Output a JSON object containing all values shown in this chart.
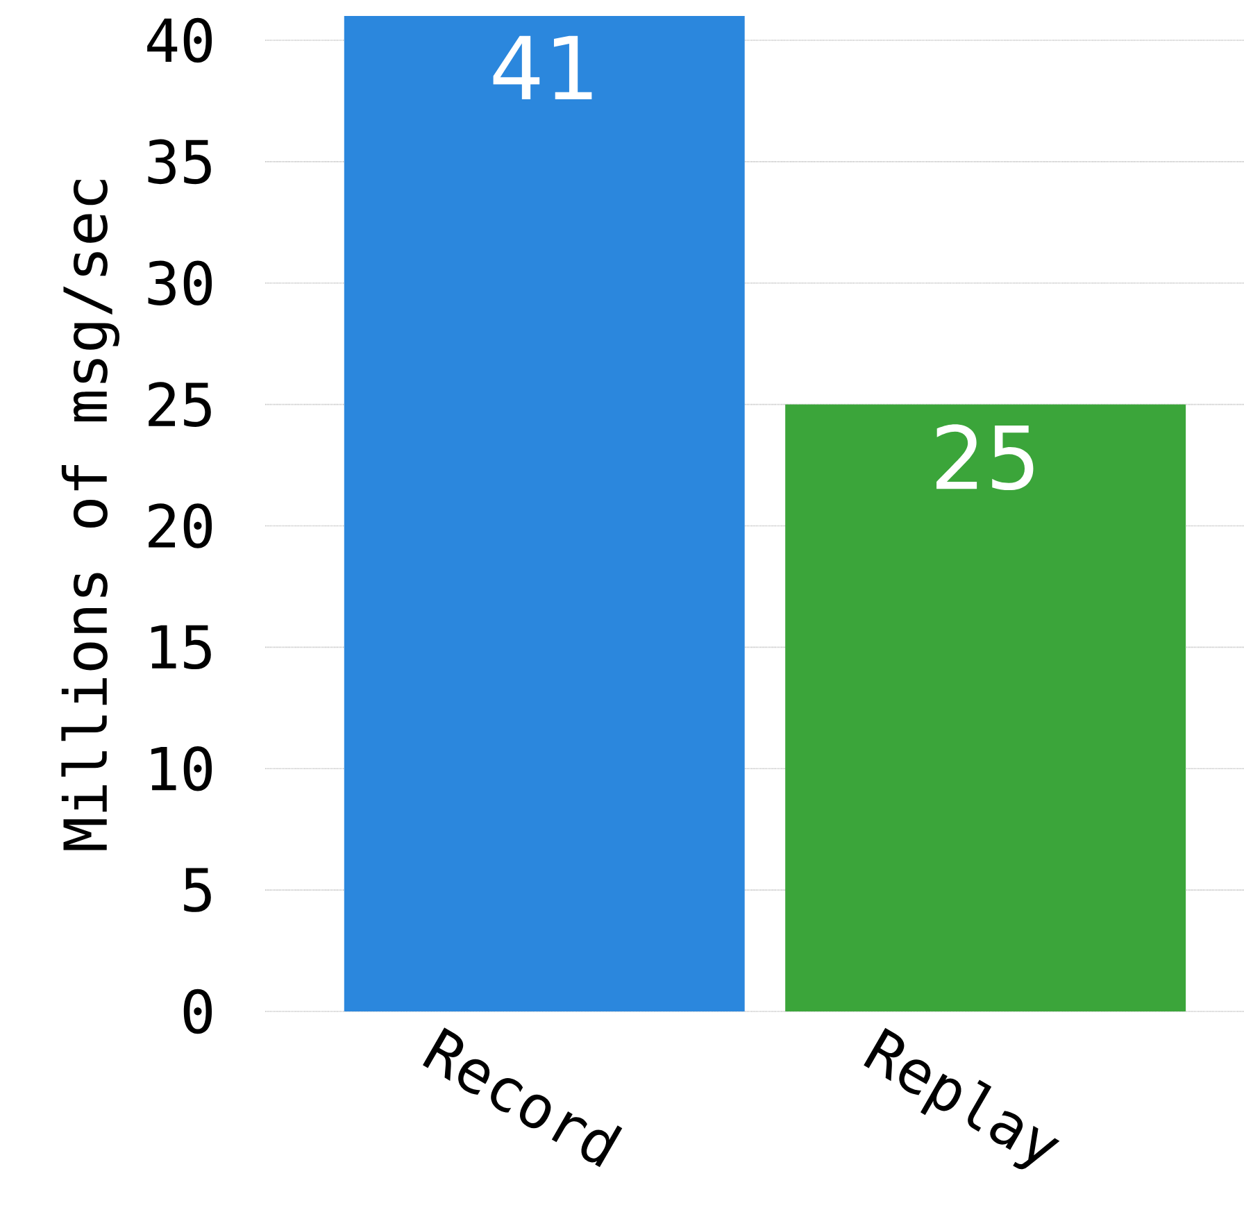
{
  "chart_data": {
    "type": "bar",
    "ylabel": "Millions of msg/sec",
    "categories": [
      "Record",
      "Replay"
    ],
    "values": [
      41,
      25
    ],
    "colors": [
      "#2b87dd",
      "#3ba53a"
    ],
    "ylim": [
      0,
      41
    ],
    "yticks": [
      0,
      5,
      10,
      15,
      20,
      25,
      30,
      35,
      40
    ],
    "grid": "y",
    "data_labels": true
  }
}
